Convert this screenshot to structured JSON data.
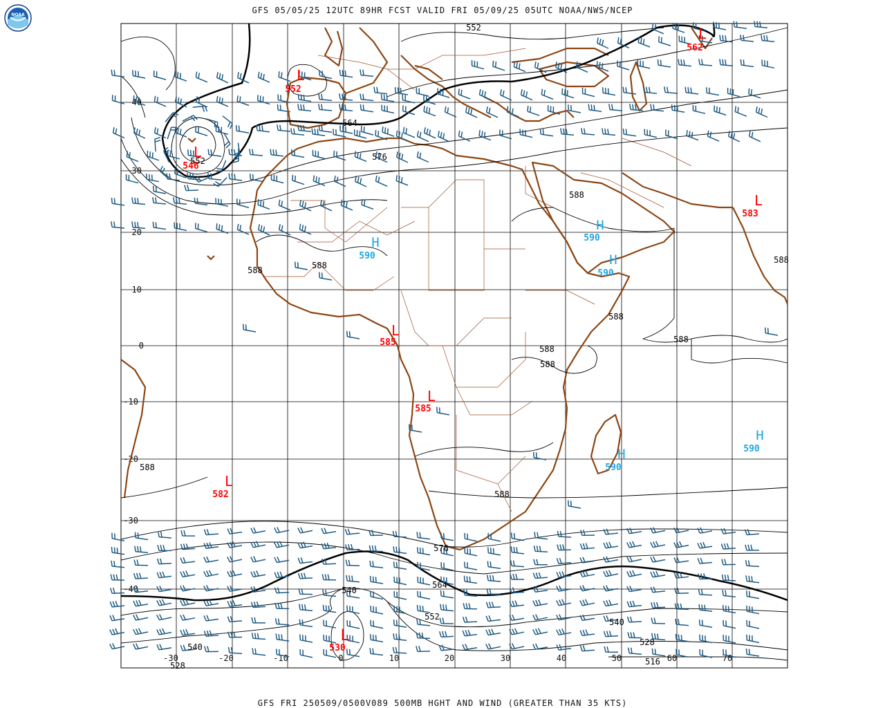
{
  "header": {
    "title": "GFS 05/05/25 12UTC 89HR FCST VALID FRI 05/09/25 05UTC NOAA/NWS/NCEP"
  },
  "footer": {
    "title": "GFS FRI 250509/0500V089 500MB HGHT AND WIND (GREATER THAN 35 KTS)"
  },
  "logo": {
    "text": "NOAA"
  },
  "colors": {
    "coast": "#8B4513",
    "border": "#A0522D",
    "barb": "#1E5A82",
    "low": "#FF0000",
    "high": "#1CA6E0",
    "contour": "#000000"
  },
  "lat_labels": [
    "40",
    "30",
    "20",
    "10",
    "0",
    "-10",
    "-20",
    "-30",
    "-40"
  ],
  "lon_labels": [
    "-30",
    "-20",
    "-10",
    "0",
    "10",
    "20",
    "30",
    "40",
    "50",
    "60",
    "70"
  ],
  "pressure_centers": [
    {
      "type": "L",
      "value": "546"
    },
    {
      "type": "L",
      "value": "552"
    },
    {
      "type": "L",
      "value": "562"
    },
    {
      "type": "L",
      "value": "583"
    },
    {
      "type": "L",
      "value": "585"
    },
    {
      "type": "L",
      "value": "585"
    },
    {
      "type": "L",
      "value": "582"
    },
    {
      "type": "L",
      "value": "530"
    },
    {
      "type": "H",
      "value": "590"
    },
    {
      "type": "H",
      "value": "590"
    },
    {
      "type": "H",
      "value": "590"
    },
    {
      "type": "H",
      "value": "590"
    },
    {
      "type": "H",
      "value": "590"
    }
  ],
  "contour_labels": [
    "552",
    "552",
    "564",
    "576",
    "588",
    "588",
    "588",
    "588",
    "588",
    "588",
    "588",
    "588",
    "588",
    "588",
    "576",
    "564",
    "552",
    "540",
    "540",
    "540",
    "528",
    "528",
    "516"
  ]
}
